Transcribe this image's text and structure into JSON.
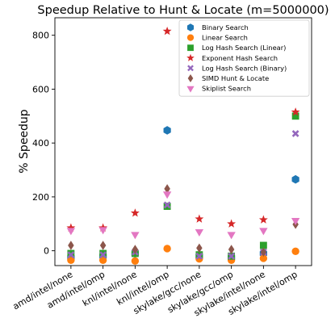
{
  "chart_data": {
    "type": "scatter",
    "title": "Speedup Relative to Hunt & Locate (m=5000000)",
    "xlabel": "",
    "ylabel": "% Speedup",
    "ylim": [
      -55,
      865
    ],
    "yticks": [
      0,
      200,
      400,
      600,
      800
    ],
    "categories": [
      "amd/intel/none",
      "amd/intel/omp",
      "knl/intel/none",
      "knl/intel/omp",
      "skylake/gcc/none",
      "skylake/gcc/omp",
      "skylake/intel/none",
      "skylake/intel/omp"
    ],
    "legend_position": "top-right",
    "grid": false,
    "series": [
      {
        "name": "Binary Search",
        "marker": "hexagon",
        "color": "#1f77b4",
        "values": [
          -25,
          -20,
          -10,
          447,
          -20,
          -25,
          -10,
          265
        ]
      },
      {
        "name": "Linear Search",
        "marker": "circle",
        "color": "#ff7f0e",
        "values": [
          -35,
          -35,
          -38,
          8,
          -30,
          -35,
          -28,
          -2
        ]
      },
      {
        "name": "Log Hash Search (Linear)",
        "marker": "square",
        "color": "#2ca02c",
        "values": [
          -10,
          -10,
          -10,
          165,
          -15,
          -20,
          20,
          500
        ]
      },
      {
        "name": "Exponent Hash Search",
        "marker": "star",
        "color": "#d62728",
        "values": [
          85,
          85,
          140,
          815,
          118,
          100,
          115,
          515
        ]
      },
      {
        "name": "Log Hash Search (Binary)",
        "marker": "x",
        "color": "#9467bd",
        "values": [
          -15,
          -15,
          -5,
          170,
          -20,
          -20,
          -5,
          435
        ]
      },
      {
        "name": "SIMD Hunt & Locate",
        "marker": "diamond",
        "color": "#8c564b",
        "values": [
          20,
          20,
          5,
          230,
          10,
          5,
          -5,
          98
        ]
      },
      {
        "name": "Skiplist Search",
        "marker": "triangle-down",
        "color": "#e377c2",
        "values": [
          75,
          78,
          60,
          210,
          70,
          60,
          75,
          112
        ]
      }
    ]
  }
}
